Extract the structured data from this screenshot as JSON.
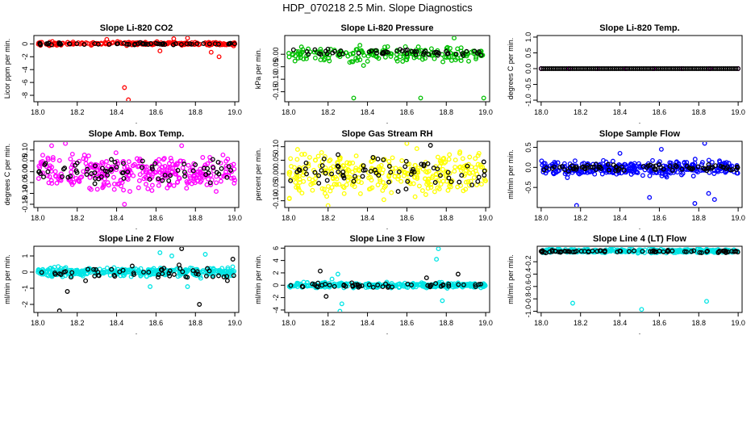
{
  "page": {
    "title": "HDP_070218  2.5 Min. Slope Diagnostics",
    "xlabel": "."
  },
  "chart_data": [
    {
      "type": "scatter",
      "title": "Slope Li-820 CO2",
      "ylabel": "Licor ppm per min.",
      "xlim": [
        17.98,
        19.02
      ],
      "ylim": [
        -9.0,
        1.3
      ],
      "xticks": [
        18.0,
        18.2,
        18.4,
        18.6,
        18.8,
        19.0
      ],
      "xtick_labels": [
        "18.0",
        "18.2",
        "18.4",
        "18.6",
        "18.8",
        "19.0"
      ],
      "yticks": [
        0,
        -2,
        -4,
        -6,
        -8
      ],
      "ytick_labels": [
        "0",
        "-2",
        "-4",
        "-6",
        "-8"
      ],
      "series": [
        {
          "color": "#ff0000",
          "band": [
            -0.35,
            0.45
          ],
          "n": 200,
          "outliers": [
            [
              18.44,
              -6.8
            ],
            [
              18.46,
              -8.7
            ],
            [
              18.62,
              -1.1
            ],
            [
              18.69,
              0.8
            ],
            [
              18.76,
              0.9
            ],
            [
              18.92,
              -2.0
            ],
            [
              18.88,
              -1.3
            ],
            [
              18.35,
              0.7
            ]
          ]
        },
        {
          "color": "#000000",
          "band": [
            -0.25,
            0.25
          ],
          "n": 55,
          "outliers": []
        }
      ]
    },
    {
      "type": "scatter",
      "title": "Slope Li-820 Pressure",
      "ylabel": "kPa per min.",
      "xlim": [
        17.98,
        19.02
      ],
      "ylim": [
        -0.19,
        0.075
      ],
      "xticks": [
        18.0,
        18.2,
        18.4,
        18.6,
        18.8,
        19.0
      ],
      "xtick_labels": [
        "18.0",
        "18.2",
        "18.4",
        "18.6",
        "18.8",
        "19.0"
      ],
      "yticks": [
        0.0,
        -0.05,
        -0.1,
        -0.15
      ],
      "ytick_labels": [
        "0.00",
        "-0.05",
        "-0.10",
        "-0.15"
      ],
      "series": [
        {
          "color": "#00c000",
          "band": [
            -0.04,
            0.045
          ],
          "n": 200,
          "outliers": [
            [
              18.33,
              -0.175
            ],
            [
              18.67,
              -0.175
            ],
            [
              18.99,
              -0.175
            ],
            [
              18.84,
              0.065
            ],
            [
              18.38,
              -0.045
            ]
          ]
        },
        {
          "color": "#000000",
          "band": [
            -0.012,
            0.028
          ],
          "n": 55,
          "outliers": []
        }
      ]
    },
    {
      "type": "scatter",
      "title": "Slope Li-820 Temp.",
      "ylabel": "degrees C per min.",
      "xlim": [
        17.98,
        19.02
      ],
      "ylim": [
        -1.05,
        1.05
      ],
      "xticks": [
        18.0,
        18.2,
        18.4,
        18.6,
        18.8,
        19.0
      ],
      "xtick_labels": [
        "18.0",
        "18.2",
        "18.4",
        "18.6",
        "18.8",
        "19.0"
      ],
      "yticks": [
        1.0,
        0.5,
        0.0,
        -0.5,
        -1.0
      ],
      "ytick_labels": [
        "1.0",
        "0.5",
        "0.0",
        "-0.5",
        "-1.0"
      ],
      "series": [
        {
          "color": "#ff00ff",
          "band": [
            0.0,
            0.0
          ],
          "n": 8,
          "outliers": [
            [
              18.0,
              0.0
            ]
          ]
        },
        {
          "color": "#000000",
          "band": [
            0.0,
            0.0
          ],
          "n": 95,
          "outliers": []
        }
      ]
    },
    {
      "type": "scatter",
      "title": "Slope Amb. Box Temp.",
      "ylabel": "degrees C per min.",
      "xlim": [
        17.98,
        19.02
      ],
      "ylim": [
        -0.165,
        0.14
      ],
      "xticks": [
        18.0,
        18.2,
        18.4,
        18.6,
        18.8,
        19.0
      ],
      "xtick_labels": [
        "18.0",
        "18.2",
        "18.4",
        "18.6",
        "18.8",
        "19.0"
      ],
      "yticks": [
        0.1,
        0.05,
        0.0,
        -0.05,
        -0.1,
        -0.15
      ],
      "ytick_labels": [
        "0.10",
        "0.05",
        "0.00",
        "-0.05",
        "-0.10",
        "-0.15"
      ],
      "series": [
        {
          "color": "#ff00ff",
          "band": [
            -0.115,
            0.115
          ],
          "n": 320,
          "outliers": [
            [
              18.14,
              0.13
            ],
            [
              18.44,
              -0.15
            ],
            [
              18.07,
              0.12
            ],
            [
              18.73,
              0.12
            ]
          ]
        },
        {
          "color": "#000000",
          "band": [
            -0.08,
            0.08
          ],
          "n": 70,
          "outliers": []
        }
      ]
    },
    {
      "type": "scatter",
      "title": "Slope Gas Stream RH",
      "ylabel": "percent per min.",
      "xlim": [
        17.98,
        19.02
      ],
      "ylim": [
        -0.125,
        0.12
      ],
      "xticks": [
        18.0,
        18.2,
        18.4,
        18.6,
        18.8,
        19.0
      ],
      "xtick_labels": [
        "18.0",
        "18.2",
        "18.4",
        "18.6",
        "18.8",
        "19.0"
      ],
      "yticks": [
        0.1,
        0.05,
        0.0,
        -0.05,
        -0.1
      ],
      "ytick_labels": [
        "0.10",
        "0.05",
        "0.00",
        "-0.05",
        "-0.10"
      ],
      "series": [
        {
          "color": "#ffff00",
          "band": [
            -0.11,
            0.11
          ],
          "n": 320,
          "outliers": [
            [
              18.2,
              -0.118
            ],
            [
              18.6,
              0.112
            ]
          ]
        },
        {
          "color": "#000000",
          "band": [
            -0.09,
            0.09
          ],
          "n": 70,
          "outliers": [
            [
              18.72,
              0.105
            ]
          ]
        }
      ]
    },
    {
      "type": "scatter",
      "title": "Slope Sample Flow",
      "ylabel": "ml/min per min.",
      "xlim": [
        17.98,
        19.02
      ],
      "ylim": [
        -1.0,
        0.65
      ],
      "xticks": [
        18.0,
        18.2,
        18.4,
        18.6,
        18.8,
        19.0
      ],
      "xtick_labels": [
        "18.0",
        "18.2",
        "18.4",
        "18.6",
        "18.8",
        "19.0"
      ],
      "yticks": [
        0.5,
        0.0,
        -0.5
      ],
      "ytick_labels": [
        "0.5",
        "0.0",
        "-0.5"
      ],
      "series": [
        {
          "color": "#0000ff",
          "band": [
            -0.3,
            0.25
          ],
          "n": 320,
          "outliers": [
            [
              18.18,
              -0.95
            ],
            [
              18.83,
              0.6
            ],
            [
              18.55,
              -0.75
            ],
            [
              18.78,
              -0.9
            ],
            [
              18.88,
              -0.8
            ],
            [
              18.85,
              -0.65
            ],
            [
              18.4,
              0.35
            ],
            [
              18.61,
              0.45
            ]
          ]
        },
        {
          "color": "#000000",
          "band": [
            -0.12,
            0.1
          ],
          "n": 80,
          "outliers": []
        }
      ]
    },
    {
      "type": "scatter",
      "title": "Slope Line 2 Flow",
      "ylabel": "ml/min per min.",
      "xlim": [
        17.98,
        19.02
      ],
      "ylim": [
        -2.5,
        1.6
      ],
      "xticks": [
        18.0,
        18.2,
        18.4,
        18.6,
        18.8,
        19.0
      ],
      "xtick_labels": [
        "18.0",
        "18.2",
        "18.4",
        "18.6",
        "18.8",
        "19.0"
      ],
      "yticks": [
        1,
        0,
        -1,
        -2
      ],
      "ytick_labels": [
        "1",
        "0",
        "-1",
        "-2"
      ],
      "series": [
        {
          "color": "#00e5e5",
          "band": [
            -0.4,
            0.4
          ],
          "n": 320,
          "outliers": [
            [
              18.62,
              1.2
            ],
            [
              18.68,
              1.0
            ],
            [
              18.85,
              1.1
            ],
            [
              18.57,
              -0.9
            ],
            [
              18.76,
              -0.9
            ]
          ]
        },
        {
          "color": "#000000",
          "band": [
            -0.7,
            0.6
          ],
          "n": 55,
          "outliers": [
            [
              18.11,
              -2.4
            ],
            [
              18.82,
              -2.0
            ],
            [
              18.15,
              -1.2
            ],
            [
              18.73,
              1.45
            ],
            [
              18.99,
              0.8
            ]
          ]
        }
      ]
    },
    {
      "type": "scatter",
      "title": "Slope Line 3 Flow",
      "ylabel": "ml/min per min.",
      "xlim": [
        17.98,
        19.02
      ],
      "ylim": [
        -4.4,
        6.3
      ],
      "xticks": [
        18.0,
        18.2,
        18.4,
        18.6,
        18.8,
        19.0
      ],
      "xtick_labels": [
        "18.0",
        "18.2",
        "18.4",
        "18.6",
        "18.8",
        "19.0"
      ],
      "yticks": [
        6,
        4,
        2,
        0,
        -2,
        -4
      ],
      "ytick_labels": [
        "6",
        "4",
        "2",
        "0",
        "-2",
        "-4"
      ],
      "series": [
        {
          "color": "#00e5e5",
          "band": [
            -0.6,
            0.6
          ],
          "n": 320,
          "outliers": [
            [
              18.25,
              1.8
            ],
            [
              18.27,
              -3.0
            ],
            [
              18.26,
              -4.2
            ],
            [
              18.76,
              5.9
            ],
            [
              18.75,
              4.2
            ],
            [
              18.78,
              -2.5
            ],
            [
              18.22,
              1.0
            ]
          ]
        },
        {
          "color": "#000000",
          "band": [
            -0.5,
            0.5
          ],
          "n": 50,
          "outliers": [
            [
              18.16,
              2.3
            ],
            [
              18.19,
              -1.8
            ],
            [
              18.86,
              1.8
            ],
            [
              18.7,
              1.2
            ]
          ]
        }
      ]
    },
    {
      "type": "scatter",
      "title": "Slope Line 4 (LT) Flow",
      "ylabel": "ml/min per min.",
      "xlim": [
        17.98,
        19.02
      ],
      "ylim": [
        -1.02,
        0.05
      ],
      "xticks": [
        18.0,
        18.2,
        18.4,
        18.6,
        18.8,
        19.0
      ],
      "xtick_labels": [
        "18.0",
        "18.2",
        "18.4",
        "18.6",
        "18.8",
        "19.0"
      ],
      "yticks": [
        -0.2,
        -0.4,
        -0.6,
        -0.8,
        -1.0
      ],
      "ytick_labels": [
        "-0.2",
        "-0.4",
        "-0.6",
        "-0.8",
        "-1.0"
      ],
      "series": [
        {
          "color": "#00e5e5",
          "band": [
            -0.07,
            0.02
          ],
          "n": 320,
          "outliers": [
            [
              18.16,
              -0.87
            ],
            [
              18.51,
              -0.97
            ],
            [
              18.84,
              -0.84
            ]
          ]
        },
        {
          "color": "#000000",
          "band": [
            -0.06,
            -0.01
          ],
          "n": 75,
          "outliers": []
        }
      ]
    }
  ]
}
